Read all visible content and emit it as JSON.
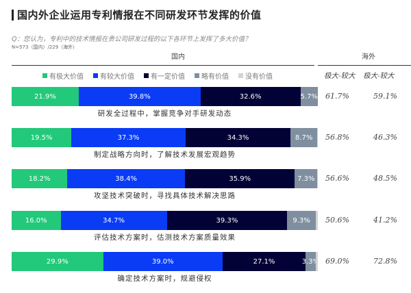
{
  "header": {
    "title": "国内外企业运用专利情报在不同研发环节发挥的价值",
    "question": "Q：您认为，专利中的技术情报在贵公司研发过程的以下各环节上发挥了多大价值？",
    "sample": "N=573（国内）/229（海外）",
    "domestic_label": "国内",
    "overseas_label": "海外",
    "domestic_col_header": "极大-较大",
    "overseas_col_header": "极大-较大"
  },
  "legend": [
    {
      "label": "有极大价值",
      "color": "#22c97a"
    },
    {
      "label": "有较大价值",
      "color": "#0a3cf5"
    },
    {
      "label": "有一定价值",
      "color": "#020236"
    },
    {
      "label": "略有价值",
      "color": "#7f8fa0"
    },
    {
      "label": "没有价值",
      "color": "#d4d4d4"
    }
  ],
  "rows": [
    {
      "label": "研发全过程中，掌握竞争对手研发动态",
      "values": [
        21.9,
        39.8,
        32.6,
        5.7,
        0.0
      ],
      "texts": [
        "21.9%",
        "39.8%",
        "32.6%",
        "5.7%",
        ""
      ],
      "domestic": "61.7%",
      "overseas": "59.1%"
    },
    {
      "label": "制定战略方向时，了解技术发展宏观趋势",
      "values": [
        19.5,
        37.3,
        34.3,
        8.7,
        0.2
      ],
      "texts": [
        "19.5%",
        "37.3%",
        "34.3%",
        "8.7%",
        ""
      ],
      "domestic": "56.8%",
      "overseas": "46.3%"
    },
    {
      "label": "攻坚技术突破时，寻找具体技术解决思路",
      "values": [
        18.2,
        38.4,
        35.9,
        7.3,
        0.2
      ],
      "texts": [
        "18.2%",
        "38.4%",
        "35.9%",
        "7.3%",
        ""
      ],
      "domestic": "56.6%",
      "overseas": "48.5%"
    },
    {
      "label": "评估技术方案时，估测技术方案质量效果",
      "values": [
        16.0,
        34.7,
        39.3,
        9.3,
        0.7
      ],
      "texts": [
        "16.0%",
        "34.7%",
        "39.3%",
        "9.3%",
        ""
      ],
      "domestic": "50.6%",
      "overseas": "41.2%"
    },
    {
      "label": "确定技术方案时，规避侵权",
      "values": [
        29.9,
        39.0,
        27.1,
        3.3,
        0.7
      ],
      "texts": [
        "29.9%",
        "39.0%",
        "27.1%",
        "3.3%",
        ""
      ],
      "domestic": "69.0%",
      "overseas": "72.8%"
    }
  ],
  "chart_data": {
    "type": "bar",
    "orientation": "horizontal-stacked-100",
    "title": "国内外企业运用专利情报在不同研发环节发挥的价值",
    "subtitle": "Q：您认为，专利中的技术情报在贵公司研发过程的以下各环节上发挥了多大价值？",
    "note": "N=573（国内）/229（海外）",
    "categories": [
      "研发全过程中，掌握竞争对手研发动态",
      "制定战略方向时，了解技术发展宏观趋势",
      "攻坚技术突破时，寻找具体技术解决思路",
      "评估技术方案时，估测技术方案质量效果",
      "确定技术方案时，规避侵权"
    ],
    "series": [
      {
        "name": "有极大价值",
        "values": [
          21.9,
          19.5,
          18.2,
          16.0,
          29.9
        ]
      },
      {
        "name": "有较大价值",
        "values": [
          39.8,
          37.3,
          38.4,
          34.7,
          39.0
        ]
      },
      {
        "name": "有一定价值",
        "values": [
          32.6,
          34.3,
          35.9,
          39.3,
          27.1
        ]
      },
      {
        "name": "略有价值",
        "values": [
          5.7,
          8.7,
          7.3,
          9.3,
          3.3
        ]
      },
      {
        "name": "没有价值",
        "values": [
          0.0,
          0.2,
          0.2,
          0.7,
          0.7
        ]
      }
    ],
    "side_columns": [
      {
        "name": "国内 极大-较大",
        "values": [
          61.7,
          56.8,
          56.6,
          50.6,
          69.0
        ]
      },
      {
        "name": "海外 极大-较大",
        "values": [
          59.1,
          46.3,
          48.5,
          41.2,
          72.8
        ]
      }
    ],
    "legend_position": "top",
    "grid": false,
    "xlim": [
      0,
      100
    ],
    "unit": "%"
  }
}
